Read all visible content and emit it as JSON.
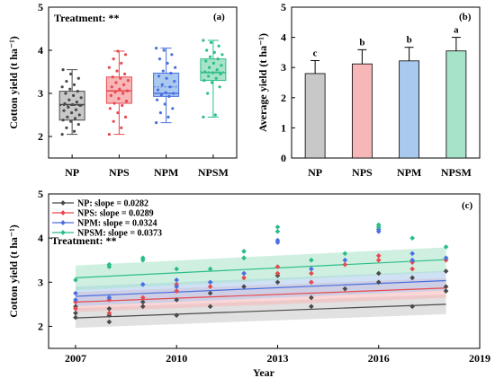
{
  "colors": {
    "NP": "#4a4a4a",
    "NPS": "#e8494f",
    "NPM": "#4a6fe0",
    "NPSM": "#2bbd86",
    "fill_NP": "#c8c8c8",
    "fill_NPS": "#f7b6b7",
    "fill_NPM": "#a9c9ef",
    "fill_NPSM": "#a7e3c8"
  },
  "chart_data": [
    {
      "panel": "(a)",
      "type": "box",
      "ylabel": "Cotton yield (t ha⁻¹)",
      "annotation": "Treatment: **",
      "ylim": [
        1.5,
        5
      ],
      "yticks": [
        2,
        3,
        4,
        5
      ],
      "categories": [
        "NP",
        "NPS",
        "NPM",
        "NPSM"
      ],
      "series": [
        {
          "category": "NP",
          "min": 2.05,
          "q1": 2.38,
          "median": 2.74,
          "q3": 3.05,
          "max": 3.55,
          "mean": 2.72
        },
        {
          "category": "NPS",
          "min": 2.05,
          "q1": 2.77,
          "median": 3.06,
          "q3": 3.38,
          "max": 3.98,
          "mean": 3.05
        },
        {
          "category": "NPM",
          "min": 2.32,
          "q1": 2.93,
          "median": 3.0,
          "q3": 3.47,
          "max": 4.05,
          "mean": 3.15
        },
        {
          "category": "NPSM",
          "min": 2.45,
          "q1": 3.3,
          "median": 3.48,
          "q3": 3.8,
          "max": 4.23,
          "mean": 3.5
        }
      ],
      "points": {
        "NP": [
          2.05,
          2.12,
          2.2,
          2.28,
          2.35,
          2.38,
          2.42,
          2.45,
          2.5,
          2.55,
          2.6,
          2.62,
          2.68,
          2.72,
          2.74,
          2.76,
          2.8,
          2.85,
          2.9,
          2.95,
          3.0,
          3.05,
          3.1,
          3.15,
          3.2,
          3.28,
          3.35,
          3.45,
          3.55
        ],
        "NPS": [
          2.05,
          2.2,
          2.35,
          2.45,
          2.55,
          2.65,
          2.72,
          2.77,
          2.82,
          2.88,
          2.95,
          3.0,
          3.03,
          3.06,
          3.1,
          3.15,
          3.2,
          3.25,
          3.3,
          3.35,
          3.38,
          3.45,
          3.52,
          3.6,
          3.7,
          3.8,
          3.9,
          3.98
        ],
        "NPM": [
          2.32,
          2.45,
          2.55,
          2.65,
          2.75,
          2.85,
          2.93,
          2.96,
          3.0,
          3.02,
          3.08,
          3.15,
          3.2,
          3.28,
          3.35,
          3.4,
          3.47,
          3.52,
          3.6,
          3.7,
          3.8,
          3.9,
          4.0,
          4.05
        ],
        "NPSM": [
          2.45,
          2.5,
          3.0,
          3.15,
          3.25,
          3.3,
          3.35,
          3.4,
          3.45,
          3.48,
          3.5,
          3.55,
          3.6,
          3.65,
          3.7,
          3.75,
          3.8,
          3.85,
          3.9,
          3.95,
          4.0,
          4.1,
          4.18,
          4.23
        ]
      }
    },
    {
      "panel": "(b)",
      "type": "bar",
      "ylabel": "Average yield (t ha⁻¹)",
      "ylim": [
        0,
        5
      ],
      "yticks": [
        0,
        1,
        2,
        3,
        4,
        5
      ],
      "categories": [
        "NP",
        "NPS",
        "NPM",
        "NPSM"
      ],
      "values": [
        2.8,
        3.12,
        3.22,
        3.55
      ],
      "errors": [
        0.43,
        0.47,
        0.45,
        0.45
      ],
      "letters": [
        "c",
        "b",
        "b",
        "a"
      ]
    },
    {
      "panel": "(c)",
      "type": "scatter",
      "xlabel": "Year",
      "ylabel": "Cotton yield (t ha⁻¹)",
      "annotation": "Treatment: **",
      "xlim": [
        2006.2,
        2019
      ],
      "xticks": [
        2007,
        2010,
        2013,
        2016,
        2019
      ],
      "ylim": [
        1.5,
        5
      ],
      "yticks": [
        2,
        3,
        4,
        5
      ],
      "series": [
        {
          "name": "NP: slope = 0.0282",
          "key": "NP",
          "intercept": 2.19,
          "slope": 0.0282,
          "band": 0.16,
          "points": [
            [
              2007,
              2.3
            ],
            [
              2007,
              2.2
            ],
            [
              2007,
              2.45
            ],
            [
              2008,
              2.1
            ],
            [
              2008,
              2.25
            ],
            [
              2008,
              2.4
            ],
            [
              2009,
              2.45
            ],
            [
              2009,
              2.55
            ],
            [
              2010,
              2.25
            ],
            [
              2010,
              2.6
            ],
            [
              2011,
              2.45
            ],
            [
              2011,
              2.75
            ],
            [
              2012,
              2.9
            ],
            [
              2013,
              3.0
            ],
            [
              2013,
              3.15
            ],
            [
              2014,
              2.45
            ],
            [
              2014,
              2.65
            ],
            [
              2015,
              2.85
            ],
            [
              2016,
              3.2
            ],
            [
              2016,
              3.0
            ],
            [
              2017,
              2.45
            ],
            [
              2017,
              3.1
            ],
            [
              2018,
              2.8
            ],
            [
              2018,
              2.9
            ],
            [
              2018,
              3.25
            ]
          ]
        },
        {
          "name": "NPS: slope = 0.0289",
          "key": "NPS",
          "intercept": 2.55,
          "slope": 0.0289,
          "band": 0.16,
          "points": [
            [
              2007,
              2.4
            ],
            [
              2007,
              2.55
            ],
            [
              2008,
              2.3
            ],
            [
              2008,
              2.6
            ],
            [
              2009,
              2.65
            ],
            [
              2010,
              2.8
            ],
            [
              2010,
              2.95
            ],
            [
              2011,
              2.9
            ],
            [
              2012,
              3.1
            ],
            [
              2013,
              3.2
            ],
            [
              2013,
              3.35
            ],
            [
              2014,
              3.2
            ],
            [
              2014,
              3.0
            ],
            [
              2015,
              3.4
            ],
            [
              2016,
              3.5
            ],
            [
              2016,
              3.6
            ],
            [
              2017,
              3.45
            ],
            [
              2017,
              3.3
            ],
            [
              2018,
              3.5
            ]
          ]
        },
        {
          "name": "NPM: slope = 0.0324",
          "key": "NPM",
          "intercept": 2.68,
          "slope": 0.0324,
          "band": 0.16,
          "points": [
            [
              2007,
              2.6
            ],
            [
              2007,
              2.75
            ],
            [
              2008,
              2.65
            ],
            [
              2009,
              2.95
            ],
            [
              2010,
              3.05
            ],
            [
              2010,
              2.9
            ],
            [
              2011,
              3.0
            ],
            [
              2012,
              3.2
            ],
            [
              2013,
              3.9
            ],
            [
              2013,
              3.95
            ],
            [
              2014,
              3.3
            ],
            [
              2015,
              3.5
            ],
            [
              2016,
              4.15
            ],
            [
              2016,
              4.2
            ],
            [
              2017,
              3.5
            ],
            [
              2017,
              3.65
            ],
            [
              2018,
              3.55
            ]
          ]
        },
        {
          "name": "NPSM: slope = 0.0373",
          "key": "NPSM",
          "intercept": 3.1,
          "slope": 0.0373,
          "band": 0.2,
          "points": [
            [
              2007,
              3.05
            ],
            [
              2008,
              3.35
            ],
            [
              2008,
              3.4
            ],
            [
              2009,
              3.5
            ],
            [
              2009,
              3.55
            ],
            [
              2010,
              3.3
            ],
            [
              2011,
              3.3
            ],
            [
              2012,
              3.55
            ],
            [
              2012,
              3.7
            ],
            [
              2013,
              4.15
            ],
            [
              2013,
              4.25
            ],
            [
              2014,
              3.5
            ],
            [
              2015,
              3.65
            ],
            [
              2016,
              4.25
            ],
            [
              2016,
              4.3
            ],
            [
              2017,
              4.0
            ],
            [
              2018,
              3.8
            ]
          ]
        }
      ]
    }
  ]
}
